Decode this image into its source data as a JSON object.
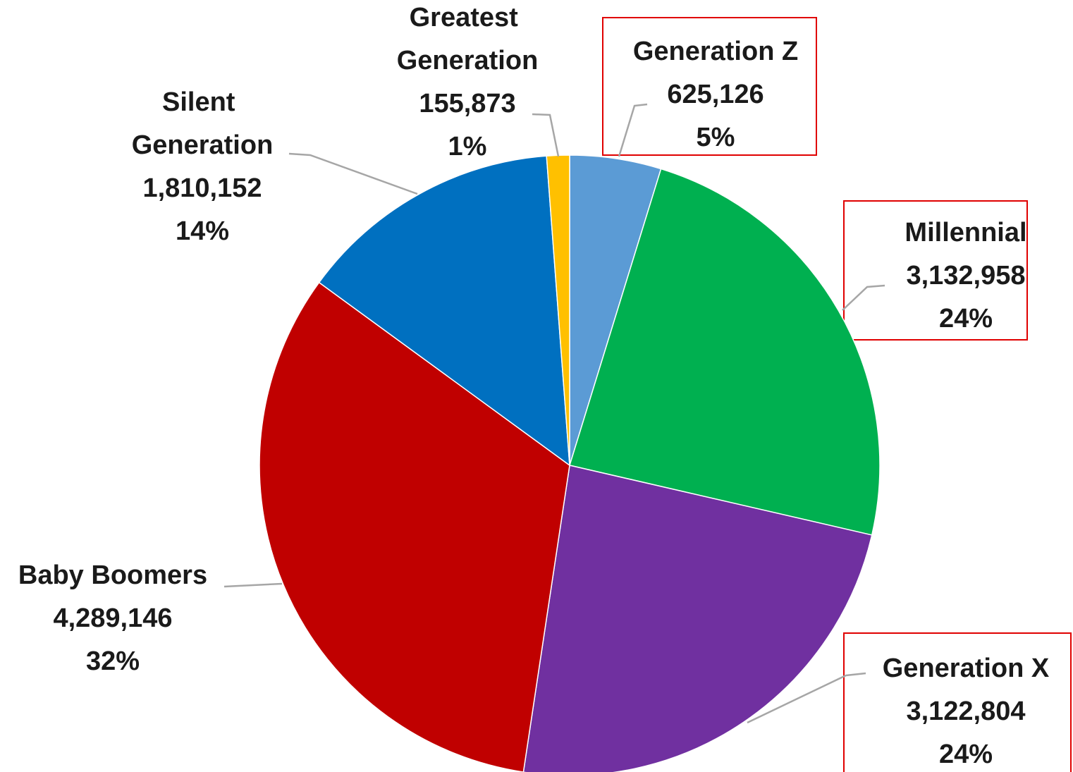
{
  "chart_data": {
    "type": "pie",
    "categories": [
      "Generation Z",
      "Millennial",
      "Generation X",
      "Baby Boomers",
      "Silent Generation",
      "Greatest Generation"
    ],
    "values": [
      625126,
      3132958,
      3122804,
      4289146,
      1810152,
      155873
    ],
    "value_labels": [
      "625,126",
      "3,132,958",
      "3,122,804",
      "4,289,146",
      "1,810,152",
      "155,873"
    ],
    "percent_labels": [
      "5%",
      "24%",
      "24%",
      "32%",
      "14%",
      "1%"
    ],
    "colors": [
      "#5b9bd5",
      "#00b050",
      "#7030a0",
      "#c00000",
      "#0070c0",
      "#ffc000"
    ]
  }
}
